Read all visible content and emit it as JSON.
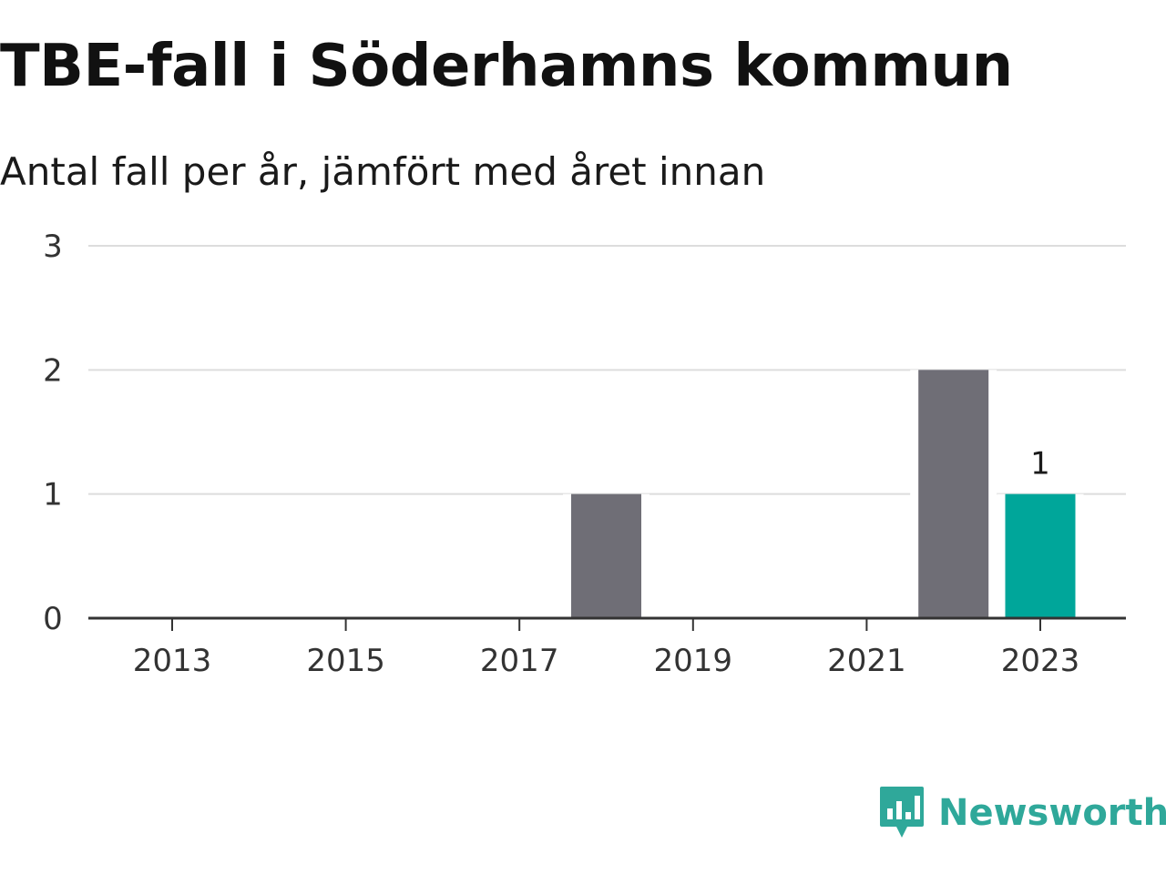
{
  "header": {
    "title": "TBE-fall i Söderhamns kommun",
    "subtitle": "Antal fall per år, jämfört med året innan"
  },
  "brand": {
    "name": "Newsworthy",
    "icon": "newsworthy-logo-icon",
    "color": "#2fa89a"
  },
  "chart_data": {
    "type": "bar",
    "categories": [
      2013,
      2014,
      2015,
      2016,
      2017,
      2018,
      2019,
      2020,
      2021,
      2022,
      2023
    ],
    "values": [
      0,
      0,
      0,
      0,
      0,
      1,
      0,
      0,
      0,
      2,
      1
    ],
    "highlight_category": 2023,
    "highlight_label": "1",
    "xtick_labels": [
      "2013",
      "2015",
      "2017",
      "2019",
      "2021",
      "2023"
    ],
    "ytick_labels": [
      "0",
      "1",
      "2",
      "3"
    ],
    "ylim": [
      0,
      3
    ],
    "grid": true,
    "colors": {
      "bar": "#6f6e76",
      "highlight": "#00a69a",
      "grid": "#dddddd",
      "axis": "#333333"
    }
  }
}
